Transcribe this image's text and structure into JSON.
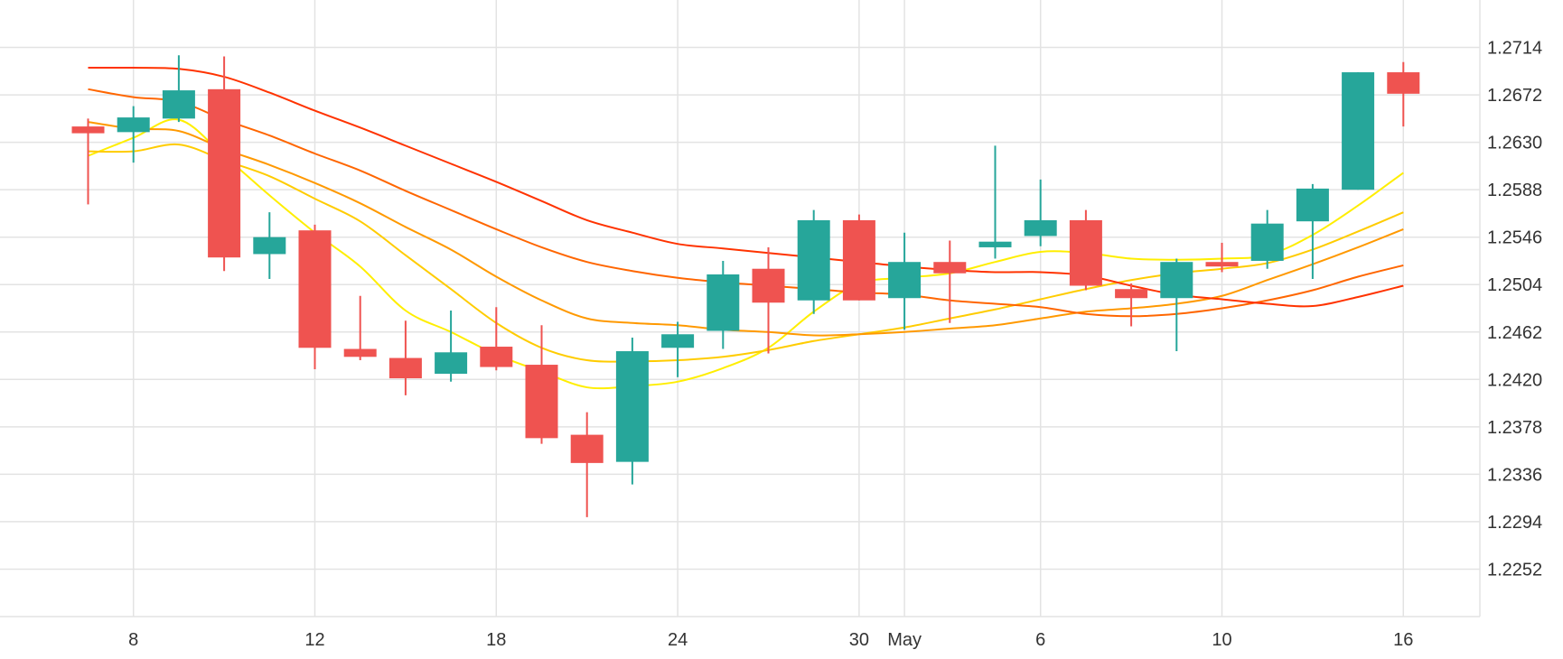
{
  "chart_data": {
    "type": "candlestick",
    "title": "",
    "xlabel": "",
    "ylabel": "",
    "ylim": [
      1.221,
      1.2756
    ],
    "grid": true,
    "legend": "none",
    "y_ticks": [
      "1.2714",
      "1.2672",
      "1.2630",
      "1.2588",
      "1.2546",
      "1.2504",
      "1.2462",
      "1.2420",
      "1.2378",
      "1.2336",
      "1.2294",
      "1.2252"
    ],
    "x_ticks": [
      {
        "label": "8",
        "index": 1
      },
      {
        "label": "12",
        "index": 5
      },
      {
        "label": "18",
        "index": 9
      },
      {
        "label": "24",
        "index": 13
      },
      {
        "label": "30",
        "index": 17
      },
      {
        "label": "May",
        "index": 18
      },
      {
        "label": "6",
        "index": 21
      },
      {
        "label": "10",
        "index": 25
      },
      {
        "label": "16",
        "index": 29
      }
    ],
    "colors": {
      "up": "#26a69a",
      "down": "#ef5350",
      "grid": "#e3e3e3"
    },
    "candles": [
      {
        "o": 1.2644,
        "h": 1.2651,
        "l": 1.2575,
        "c": 1.2638
      },
      {
        "o": 1.2639,
        "h": 1.2662,
        "l": 1.2612,
        "c": 1.2652
      },
      {
        "o": 1.2651,
        "h": 1.2707,
        "l": 1.2648,
        "c": 1.2676
      },
      {
        "o": 1.2677,
        "h": 1.2706,
        "l": 1.2516,
        "c": 1.2528
      },
      {
        "o": 1.2531,
        "h": 1.2568,
        "l": 1.2509,
        "c": 1.2546
      },
      {
        "o": 1.2552,
        "h": 1.2557,
        "l": 1.2429,
        "c": 1.2448
      },
      {
        "o": 1.2447,
        "h": 1.2494,
        "l": 1.2437,
        "c": 1.244
      },
      {
        "o": 1.2439,
        "h": 1.2472,
        "l": 1.2406,
        "c": 1.2421
      },
      {
        "o": 1.2425,
        "h": 1.2481,
        "l": 1.2418,
        "c": 1.2444
      },
      {
        "o": 1.2449,
        "h": 1.2484,
        "l": 1.2428,
        "c": 1.2431
      },
      {
        "o": 1.2433,
        "h": 1.2468,
        "l": 1.2363,
        "c": 1.2368
      },
      {
        "o": 1.2371,
        "h": 1.2391,
        "l": 1.2298,
        "c": 1.2346
      },
      {
        "o": 1.2347,
        "h": 1.2457,
        "l": 1.2327,
        "c": 1.2445
      },
      {
        "o": 1.2448,
        "h": 1.2471,
        "l": 1.2422,
        "c": 1.246
      },
      {
        "o": 1.2463,
        "h": 1.2525,
        "l": 1.2447,
        "c": 1.2513
      },
      {
        "o": 1.2518,
        "h": 1.2537,
        "l": 1.2443,
        "c": 1.2488
      },
      {
        "o": 1.249,
        "h": 1.257,
        "l": 1.2478,
        "c": 1.2561
      },
      {
        "o": 1.2561,
        "h": 1.2566,
        "l": 1.249,
        "c": 1.249
      },
      {
        "o": 1.2492,
        "h": 1.255,
        "l": 1.2464,
        "c": 1.2524
      },
      {
        "o": 1.2524,
        "h": 1.2543,
        "l": 1.247,
        "c": 1.2514
      },
      {
        "o": 1.2537,
        "h": 1.2627,
        "l": 1.2527,
        "c": 1.2542
      },
      {
        "o": 1.2547,
        "h": 1.2597,
        "l": 1.2538,
        "c": 1.2561
      },
      {
        "o": 1.2561,
        "h": 1.257,
        "l": 1.2499,
        "c": 1.2503
      },
      {
        "o": 1.25,
        "h": 1.2505,
        "l": 1.2467,
        "c": 1.2492
      },
      {
        "o": 1.2492,
        "h": 1.2527,
        "l": 1.2445,
        "c": 1.2524
      },
      {
        "o": 1.2524,
        "h": 1.2541,
        "l": 1.2515,
        "c": 1.252
      },
      {
        "o": 1.2525,
        "h": 1.257,
        "l": 1.2518,
        "c": 1.2558
      },
      {
        "o": 1.256,
        "h": 1.2593,
        "l": 1.2509,
        "c": 1.2589
      },
      {
        "o": 1.2588,
        "h": 1.2692,
        "l": 1.2588,
        "c": 1.2692
      },
      {
        "o": 1.2692,
        "h": 1.2701,
        "l": 1.2644,
        "c": 1.2673
      }
    ],
    "moving_averages": [
      {
        "color": "#ffee00",
        "values": [
          1.2618,
          1.2634,
          1.265,
          1.2618,
          1.2583,
          1.255,
          1.252,
          1.2481,
          1.2462,
          1.2442,
          1.2427,
          1.2413,
          1.2414,
          1.2418,
          1.243,
          1.2448,
          1.248,
          1.2505,
          1.251,
          1.2514,
          1.2524,
          1.2533,
          1.2532,
          1.2527,
          1.2526,
          1.2527,
          1.253,
          1.2548,
          1.2574,
          1.2603
        ]
      },
      {
        "color": "#ffcc00",
        "values": [
          1.2622,
          1.2622,
          1.2628,
          1.2614,
          1.26,
          1.258,
          1.256,
          1.253,
          1.25,
          1.247,
          1.2448,
          1.2437,
          1.2436,
          1.2437,
          1.244,
          1.2446,
          1.2454,
          1.246,
          1.2466,
          1.2474,
          1.2482,
          1.2491,
          1.25,
          1.2508,
          1.2514,
          1.2518,
          1.2523,
          1.2535,
          1.2551,
          1.2568
        ]
      },
      {
        "color": "#ff9900",
        "values": [
          1.2648,
          1.2642,
          1.264,
          1.2624,
          1.261,
          1.2594,
          1.2576,
          1.2555,
          1.2535,
          1.2511,
          1.249,
          1.2474,
          1.247,
          1.2468,
          1.2464,
          1.2462,
          1.2459,
          1.246,
          1.2462,
          1.2465,
          1.2468,
          1.2474,
          1.248,
          1.2483,
          1.2487,
          1.2494,
          1.2508,
          1.2522,
          1.2537,
          1.2553
        ]
      },
      {
        "color": "#ff6600",
        "values": [
          1.2677,
          1.267,
          1.2666,
          1.265,
          1.2636,
          1.262,
          1.2605,
          1.2587,
          1.257,
          1.2553,
          1.2537,
          1.2524,
          1.2516,
          1.251,
          1.2506,
          1.2503,
          1.25,
          1.2497,
          1.2495,
          1.249,
          1.2487,
          1.2484,
          1.2478,
          1.2476,
          1.2478,
          1.2483,
          1.249,
          1.2499,
          1.2511,
          1.2521
        ]
      },
      {
        "color": "#ff3300",
        "values": [
          1.2696,
          1.2696,
          1.2695,
          1.2688,
          1.2674,
          1.2658,
          1.2643,
          1.2627,
          1.2611,
          1.2595,
          1.2578,
          1.2561,
          1.255,
          1.254,
          1.2536,
          1.2532,
          1.2528,
          1.2524,
          1.252,
          1.2517,
          1.2515,
          1.2515,
          1.2512,
          1.2503,
          1.2495,
          1.2491,
          1.2487,
          1.2485,
          1.2493,
          1.2503
        ]
      }
    ]
  }
}
